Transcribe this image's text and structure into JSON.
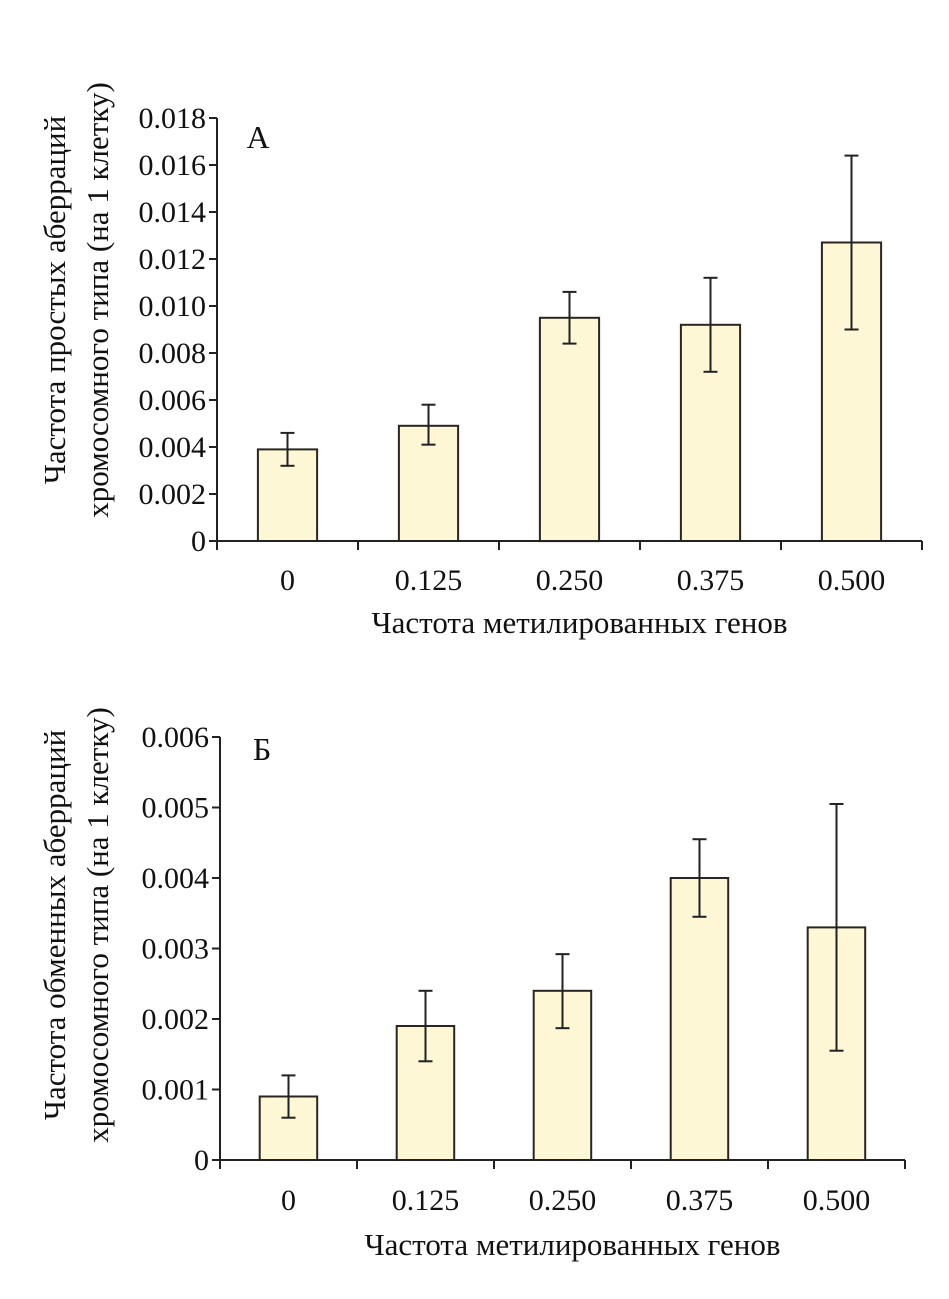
{
  "chart_data": [
    {
      "type": "bar",
      "panel_label": "А",
      "title": "",
      "xlabel": "Частота метилированных генов",
      "ylabel_lines": [
        "Частота простых аберраций",
        "хромосомного типа (на 1 клетку)"
      ],
      "categories": [
        "0",
        "0.125",
        "0.250",
        "0.375",
        "0.500"
      ],
      "values": [
        0.0039,
        0.0049,
        0.0095,
        0.0092,
        0.0127
      ],
      "error_low": [
        0.0032,
        0.0041,
        0.0084,
        0.0072,
        0.009
      ],
      "error_high": [
        0.0046,
        0.0058,
        0.0106,
        0.0112,
        0.0164
      ],
      "ylim": [
        0,
        0.018
      ],
      "yticks": [
        0,
        0.002,
        0.004,
        0.006,
        0.008,
        0.01,
        0.012,
        0.014,
        0.016,
        0.018
      ],
      "ytick_labels": [
        "0",
        "0.002",
        "0.004",
        "0.006",
        "0.008",
        "0.010",
        "0.012",
        "0.014",
        "0.016",
        "0.018"
      ],
      "grid": false,
      "bar_color": "#fdf7d6",
      "edge_color": "#2a2520"
    },
    {
      "type": "bar",
      "panel_label": "Б",
      "title": "",
      "xlabel": "Частота метилированных генов",
      "ylabel_lines": [
        "Частота обменных аберраций",
        "хромосомного типа (на 1 клетку)"
      ],
      "categories": [
        "0",
        "0.125",
        "0.250",
        "0.375",
        "0.500"
      ],
      "values": [
        0.0009,
        0.0019,
        0.0024,
        0.004,
        0.0033
      ],
      "error_low": [
        0.0006,
        0.0014,
        0.00187,
        0.00345,
        0.00155
      ],
      "error_high": [
        0.0012,
        0.0024,
        0.00292,
        0.00455,
        0.00505
      ],
      "ylim": [
        0,
        0.006
      ],
      "yticks": [
        0,
        0.001,
        0.002,
        0.003,
        0.004,
        0.005,
        0.006
      ],
      "ytick_labels": [
        "0",
        "0.001",
        "0.002",
        "0.003",
        "0.004",
        "0.005",
        "0.006"
      ],
      "grid": false,
      "bar_color": "#fdf7d6",
      "edge_color": "#2a2520"
    }
  ]
}
